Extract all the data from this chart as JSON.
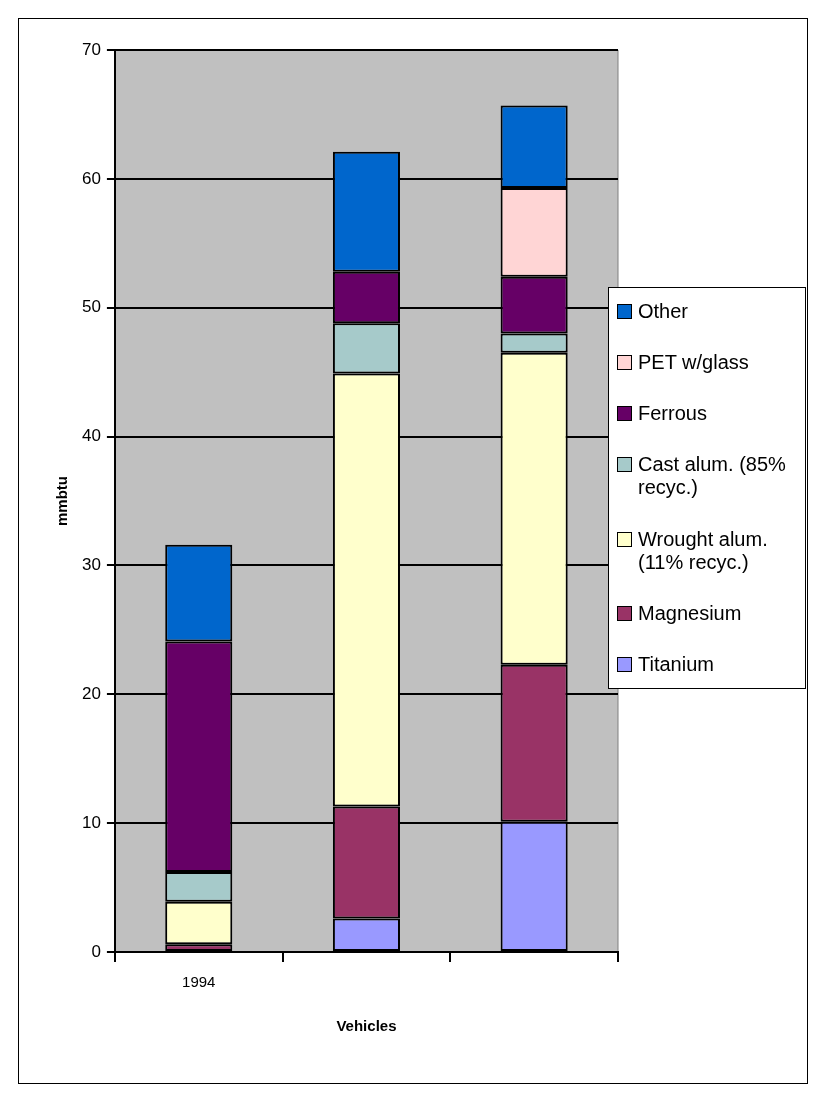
{
  "chart_data": {
    "type": "bar",
    "stacked": true,
    "xlabel": "Vehicles",
    "ylabel": "mmbtu",
    "categories": [
      "1994",
      null,
      null
    ],
    "series": [
      {
        "name": "Titanium",
        "color": "#9999ff",
        "values": [
          0,
          2.6,
          10.1
        ]
      },
      {
        "name": "Magnesium",
        "color": "#993366",
        "values": [
          0.6,
          8.7,
          12.2
        ]
      },
      {
        "name": "Wrought alum. (11% recyc.)",
        "color": "#ffffcc",
        "values": [
          3.3,
          33.6,
          24.2
        ]
      },
      {
        "name": "Cast alum. (85% recyc.)",
        "color": "#a6caca",
        "values": [
          2.3,
          3.9,
          1.5
        ]
      },
      {
        "name": "Ferrous",
        "color": "#660066",
        "values": [
          17.9,
          4.0,
          4.4
        ]
      },
      {
        "name": "PET w/glass",
        "color": "#ffd5d5",
        "values": [
          0,
          0,
          6.9
        ]
      },
      {
        "name": "Other",
        "color": "#0066cc",
        "values": [
          7.5,
          9.3,
          6.4
        ]
      }
    ],
    "ylim": [
      0,
      70
    ],
    "yticks": [
      0,
      10,
      20,
      30,
      40,
      50,
      60,
      70
    ],
    "grid": "y",
    "legend": "right"
  }
}
